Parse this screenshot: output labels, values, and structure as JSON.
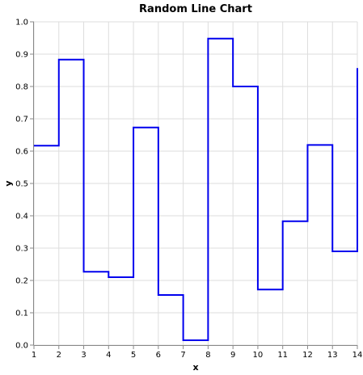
{
  "chart_data": {
    "type": "line",
    "title": "Random Line Chart",
    "xlabel": "x",
    "ylabel": "y",
    "xlim": [
      1,
      14
    ],
    "ylim": [
      0,
      1
    ],
    "x_ticks": [
      "1",
      "2",
      "3",
      "4",
      "5",
      "6",
      "7",
      "8",
      "9",
      "10",
      "11",
      "12",
      "13",
      "14"
    ],
    "y_ticks": [
      "0.0",
      "0.1",
      "0.2",
      "0.3",
      "0.4",
      "0.5",
      "0.6",
      "0.7",
      "0.8",
      "0.9",
      "1.0"
    ],
    "grid": true,
    "interpolation": "step-after",
    "series": [
      {
        "color": "#0000ee",
        "x": [
          1,
          2,
          3,
          4,
          5,
          6,
          7,
          8,
          9,
          10,
          11,
          12,
          13,
          14
        ],
        "y": [
          0.617,
          0.883,
          0.227,
          0.21,
          0.673,
          0.155,
          0.015,
          0.948,
          0.8,
          0.172,
          0.383,
          0.619,
          0.29,
          0.857
        ]
      }
    ]
  }
}
